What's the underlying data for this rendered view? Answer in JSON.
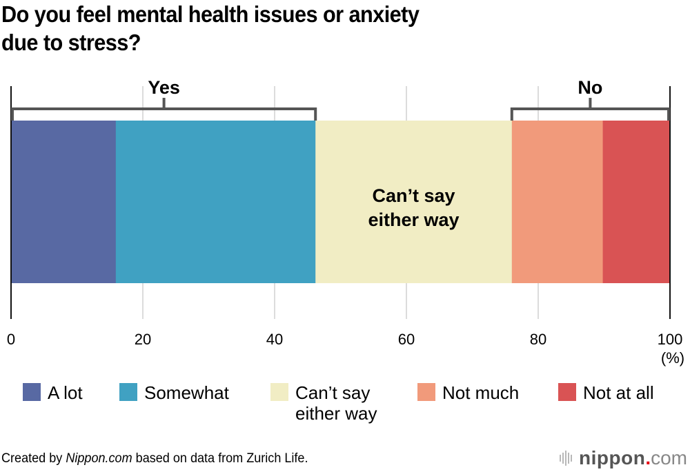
{
  "chart_data": {
    "type": "bar",
    "orientation": "horizontal-stacked-100",
    "title": "Do you feel mental health issues or anxiety due to stress?",
    "title_lines": [
      "Do you feel mental health issues or anxiety",
      "due to stress?"
    ],
    "xlabel": "",
    "unit_label": "(%)",
    "xlim": [
      0,
      100
    ],
    "ticks": [
      0,
      20,
      40,
      60,
      80,
      100
    ],
    "tick_labels": [
      "0",
      "20",
      "40",
      "60",
      "80",
      "100"
    ],
    "grid": true,
    "series": [
      {
        "name": "A lot",
        "value": 15.9,
        "color": "#5869a3"
      },
      {
        "name": "Somewhat",
        "value": 30.3,
        "color": "#40a1c2"
      },
      {
        "name": "Can’t say either way",
        "value": 29.8,
        "color": "#f1edc4"
      },
      {
        "name": "Not much",
        "value": 13.8,
        "color": "#f19a7b"
      },
      {
        "name": "Not at all",
        "value": 10.2,
        "color": "#d95354"
      }
    ],
    "annotations": {
      "inside_label": {
        "text_lines": [
          "Can’t say",
          "either way"
        ],
        "series_index": 2
      },
      "brackets": [
        {
          "label": "Yes",
          "from": 0,
          "to": 46.2
        },
        {
          "label": "No",
          "from": 76.0,
          "to": 100
        }
      ]
    },
    "legend": {
      "placement": "bottom",
      "entries": [
        {
          "label": "A lot",
          "color": "#5869a3"
        },
        {
          "label": "Somewhat",
          "color": "#40a1c2"
        },
        {
          "label": "Can’t say\neither way",
          "color": "#f1edc4"
        },
        {
          "label": "Not much",
          "color": "#f19a7b"
        },
        {
          "label": "Not at all",
          "color": "#d95354"
        }
      ]
    }
  },
  "footer": {
    "credit_prefix": "Created by ",
    "credit_italic": "Nippon.com",
    "credit_suffix": " based on data from Zurich Life.",
    "logo_word": "nippon",
    "logo_dot": ".",
    "logo_tld": "com"
  }
}
